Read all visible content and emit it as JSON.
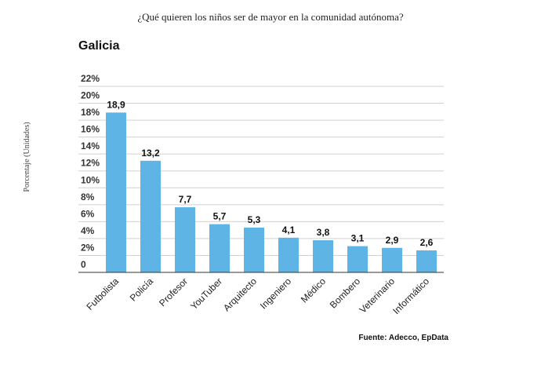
{
  "chart_data": {
    "type": "bar",
    "title": "¿Qué quieren los niños ser de mayor en la comunidad autónoma?",
    "subtitle": "Galicia",
    "y_label": "Porcentaje (Unidades)",
    "source": "Fuente: Adecco, EpData",
    "categories": [
      "Futbolista",
      "Policía",
      "Profesor",
      "YouTuber",
      "Arquitecto",
      "Ingeniero",
      "Médico",
      "Bombero",
      "Veterinario",
      "Informático"
    ],
    "values": [
      18.9,
      13.2,
      7.7,
      5.7,
      5.3,
      4.1,
      3.8,
      3.1,
      2.9,
      2.6
    ],
    "value_labels": [
      "18,9",
      "13,2",
      "7,7",
      "5,7",
      "5,3",
      "4,1",
      "3,8",
      "3,1",
      "2,9",
      "2,6"
    ],
    "color": "#5db4e5",
    "ylim": [
      0,
      22
    ],
    "yticks": [
      0,
      {
        "value": 2,
        "label": "2%"
      },
      {
        "value": 4,
        "label": "4%"
      },
      {
        "value": 6,
        "label": "6%"
      },
      {
        "value": 8,
        "label": "8%"
      },
      {
        "value": 10,
        "label": "10%"
      },
      {
        "value": 12,
        "label": "12%"
      },
      {
        "value": 14,
        "label": "14%"
      },
      {
        "value": 16,
        "label": "16%"
      },
      {
        "value": 18,
        "label": "18%"
      },
      {
        "value": 20,
        "label": "20%"
      },
      {
        "value": 22,
        "label": "22%"
      }
    ],
    "grid": true
  }
}
